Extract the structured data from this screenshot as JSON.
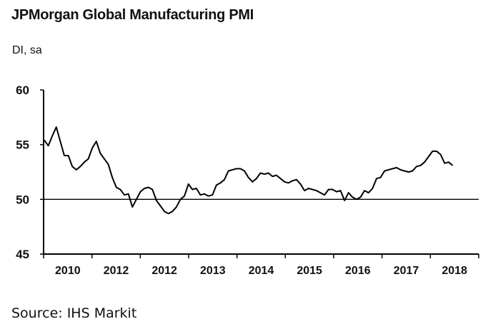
{
  "chart_data": {
    "type": "line",
    "title": "JPMorgan Global Manufacturing PMI",
    "subtitle": "DI, sa",
    "xlabel": "",
    "ylabel": "DI, sa",
    "ylim": [
      45,
      60
    ],
    "y_ticks": [
      45,
      50,
      55,
      60
    ],
    "x_tick_labels": [
      "2010",
      "2012",
      "2012",
      "2013",
      "2014",
      "2015",
      "2016",
      "2017",
      "2018"
    ],
    "reference_line": 50,
    "series": [
      {
        "name": "JPMorgan Global Manufacturing PMI",
        "values": [
          55.4,
          54.9,
          55.8,
          56.6,
          55.3,
          54.0,
          54.0,
          53.0,
          52.7,
          53.0,
          53.4,
          53.7,
          54.7,
          55.3,
          54.2,
          53.7,
          53.2,
          52.0,
          51.1,
          50.9,
          50.4,
          50.5,
          49.3,
          50.0,
          50.7,
          51.0,
          51.1,
          50.9,
          49.9,
          49.4,
          48.9,
          48.7,
          48.9,
          49.3,
          50.0,
          50.3,
          51.4,
          50.9,
          51.0,
          50.4,
          50.5,
          50.3,
          50.4,
          51.3,
          51.5,
          51.8,
          52.6,
          52.7,
          52.8,
          52.8,
          52.6,
          52.0,
          51.6,
          51.9,
          52.4,
          52.3,
          52.4,
          52.1,
          52.2,
          51.9,
          51.6,
          51.5,
          51.7,
          51.8,
          51.4,
          50.8,
          51.0,
          50.9,
          50.8,
          50.6,
          50.4,
          50.9,
          50.9,
          50.7,
          50.8,
          49.9,
          50.6,
          50.2,
          50.0,
          50.2,
          50.8,
          50.6,
          51.0,
          51.9,
          52.0,
          52.6,
          52.7,
          52.8,
          52.9,
          52.7,
          52.6,
          52.5,
          52.6,
          53.0,
          53.1,
          53.4,
          53.9,
          54.4,
          54.4,
          54.1,
          53.3,
          53.4,
          53.1
        ]
      }
    ]
  },
  "source": "Source: IHS Markit",
  "colors": {
    "line": "#000000",
    "axis": "#000000"
  }
}
